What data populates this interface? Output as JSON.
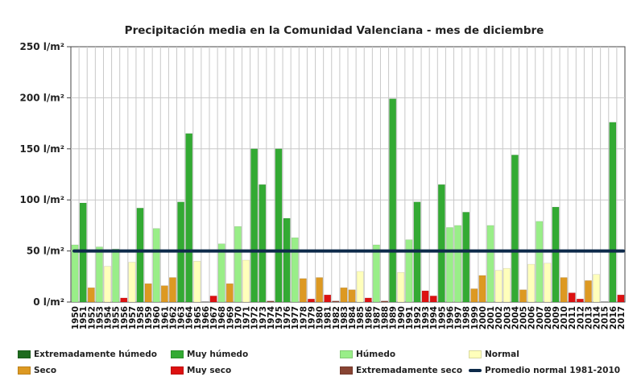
{
  "chart_data": {
    "type": "bar",
    "title": "Precipitación media en la Comunidad Valenciana - mes de diciembre",
    "xlabel": "",
    "ylabel": "",
    "ylim": [
      0,
      250
    ],
    "y_tick_labels": [
      "0 l/m²",
      "50 l/m²",
      "100 l/m²",
      "150 l/m²",
      "200 l/m²",
      "250 l/m²"
    ],
    "grid": "vertical lines between years, horizontal lines at y ticks",
    "reference_line": {
      "name": "Promedio normal 1981-2010",
      "value": 50,
      "color": "#0d2a4a"
    },
    "x_tick_labels": [
      "1950",
      "1951",
      "1952",
      "1953",
      "1954",
      "1955",
      "1956",
      "1957",
      "1958",
      "1959",
      "1960",
      "1961",
      "1962",
      "1963",
      "1964",
      "1965",
      "1966",
      "1967",
      "1968",
      "1969",
      "1970",
      "1971",
      "1972",
      "1973",
      "1974",
      "1975",
      "1976",
      "1977",
      "1978",
      "1979",
      "1980",
      "1981",
      "1982",
      "1983",
      "1984",
      "1985",
      "1986",
      "1987",
      "1988",
      "1989",
      "1990",
      "1991",
      "1992",
      "1993",
      "1994",
      "1995",
      "1996",
      "1997",
      "1998",
      "1999",
      "2000",
      "2001",
      "2002",
      "2003",
      "2004",
      "2005",
      "2006",
      "2007",
      "2008",
      "2009",
      "2010",
      "2011",
      "2012",
      "2013",
      "2014",
      "2015",
      "2016",
      "2017"
    ],
    "categories": [
      "1950",
      "1951",
      "1952",
      "1953",
      "1954",
      "1955",
      "1956",
      "1957",
      "1958",
      "1959",
      "1960",
      "1961",
      "1962",
      "1963",
      "1964",
      "1965",
      "1966",
      "1967",
      "1968",
      "1969",
      "1970",
      "1971",
      "1972",
      "1973",
      "1974",
      "1975",
      "1976",
      "1977",
      "1978",
      "1979",
      "1980",
      "1981",
      "1982",
      "1983",
      "1984",
      "1985",
      "1986",
      "1987",
      "1988",
      "1989",
      "1990",
      "1991",
      "1992",
      "1993",
      "1994",
      "1995",
      "1996",
      "1997",
      "1998",
      "1999",
      "2000",
      "2001",
      "2002",
      "2003",
      "2004",
      "2005",
      "2006",
      "2007",
      "2008",
      "2009",
      "2010",
      "2011",
      "2012",
      "2013",
      "2014",
      "2015",
      "2016",
      "2017"
    ],
    "values": [
      56,
      97,
      14,
      54,
      35,
      52,
      4,
      39,
      92,
      18,
      72,
      16,
      24,
      98,
      165,
      40,
      0,
      6,
      57,
      18,
      74,
      41,
      150,
      115,
      1,
      150,
      82,
      63,
      23,
      3,
      24,
      7,
      1,
      14,
      12,
      30,
      4,
      56,
      1,
      199,
      29,
      61,
      98,
      11,
      6,
      115,
      73,
      75,
      88,
      13,
      26,
      75,
      31,
      33,
      144,
      12,
      37,
      79,
      38,
      93,
      24,
      9,
      3,
      21,
      27,
      0,
      176,
      7
    ],
    "classes": [
      "h",
      "mh",
      "s",
      "h",
      "n",
      "h",
      "ms",
      "n",
      "mh",
      "s",
      "h",
      "s",
      "s",
      "mh",
      "mh",
      "n",
      "ms",
      "ms",
      "h",
      "s",
      "h",
      "n",
      "mh",
      "mh",
      "es",
      "mh",
      "mh",
      "h",
      "s",
      "ms",
      "s",
      "ms",
      "es",
      "s",
      "s",
      "n",
      "ms",
      "h",
      "es",
      "mh",
      "n",
      "h",
      "mh",
      "ms",
      "ms",
      "mh",
      "h",
      "h",
      "mh",
      "s",
      "s",
      "h",
      "n",
      "n",
      "mh",
      "s",
      "n",
      "h",
      "n",
      "mh",
      "s",
      "ms",
      "ms",
      "s",
      "n",
      "es",
      "mh",
      "ms"
    ],
    "class_colors": {
      "eh": "#1e6b1e",
      "mh": "#33aa33",
      "h": "#99ee88",
      "n": "#ffffbb",
      "s": "#dd9922",
      "ms": "#dd1111",
      "es": "#884433"
    },
    "legend": [
      {
        "key": "eh",
        "label": "Extremadamente húmedo",
        "color": "#1e6b1e"
      },
      {
        "key": "mh",
        "label": "Muy húmedo",
        "color": "#33aa33"
      },
      {
        "key": "h",
        "label": "Húmedo",
        "color": "#99ee88"
      },
      {
        "key": "n",
        "label": "Normal",
        "color": "#ffffbb"
      },
      {
        "key": "s",
        "label": "Seco",
        "color": "#dd9922"
      },
      {
        "key": "ms",
        "label": "Muy seco",
        "color": "#dd1111"
      },
      {
        "key": "es",
        "label": "Extremadamente seco",
        "color": "#884433"
      },
      {
        "key": "line",
        "label": "Promedio normal 1981-2010",
        "color": "#0d2a4a"
      }
    ],
    "legend_placement": "bottom"
  }
}
